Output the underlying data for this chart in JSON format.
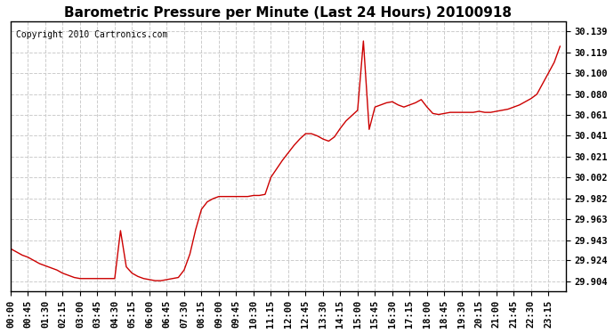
{
  "title": "Barometric Pressure per Minute (Last 24 Hours) 20100918",
  "copyright": "Copyright 2010 Cartronics.com",
  "line_color": "#cc0000",
  "bg_color": "#ffffff",
  "grid_color": "#cccccc",
  "yticks": [
    29.904,
    29.924,
    29.943,
    29.963,
    29.982,
    30.002,
    30.021,
    30.041,
    30.061,
    30.08,
    30.1,
    30.119,
    30.139
  ],
  "ytick_labels": [
    "29.904",
    "29.924",
    "29.943",
    "29.963",
    "29.982",
    "30.002",
    "30.021",
    "30.041",
    "30.061",
    "30.080",
    "30.100",
    "30.119",
    "30.139"
  ],
  "ylim": [
    29.895,
    30.148
  ],
  "xtick_labels": [
    "00:00",
    "00:45",
    "01:30",
    "02:15",
    "03:00",
    "03:45",
    "04:30",
    "05:15",
    "06:00",
    "06:45",
    "07:30",
    "08:15",
    "09:00",
    "09:45",
    "10:30",
    "11:15",
    "12:00",
    "12:45",
    "13:30",
    "14:15",
    "15:00",
    "15:45",
    "16:30",
    "17:15",
    "18:00",
    "18:45",
    "19:30",
    "20:15",
    "21:00",
    "21:45",
    "22:30",
    "23:15"
  ],
  "minutes": [
    0,
    15,
    30,
    45,
    60,
    75,
    90,
    105,
    120,
    135,
    150,
    165,
    180,
    195,
    210,
    225,
    240,
    255,
    270,
    285,
    300,
    315,
    330,
    345,
    360,
    375,
    390,
    405,
    420,
    435,
    450,
    465,
    480,
    495,
    510,
    525,
    540,
    555,
    570,
    585,
    600,
    615,
    630,
    645,
    660,
    675,
    690,
    705,
    720,
    735,
    750,
    765,
    780,
    795,
    810,
    825,
    840,
    855,
    870,
    885,
    900,
    915,
    930,
    945,
    960,
    975,
    990,
    1005,
    1020,
    1035,
    1050,
    1065,
    1080,
    1095,
    1110,
    1125,
    1140,
    1155,
    1170,
    1185,
    1200,
    1215,
    1230,
    1245,
    1260,
    1275,
    1290,
    1305,
    1320,
    1335,
    1350,
    1365,
    1380,
    1395,
    1410,
    1425
  ],
  "pressure": [
    29.935,
    29.932,
    29.929,
    29.927,
    29.924,
    29.921,
    29.919,
    29.917,
    29.915,
    29.912,
    29.91,
    29.908,
    29.907,
    29.907,
    29.907,
    29.907,
    29.907,
    29.907,
    29.907,
    29.952,
    29.918,
    29.912,
    29.909,
    29.907,
    29.906,
    29.905,
    29.905,
    29.906,
    29.907,
    29.908,
    29.915,
    29.93,
    29.953,
    29.972,
    29.979,
    29.982,
    29.984,
    29.984,
    29.984,
    29.984,
    29.984,
    29.984,
    29.985,
    29.985,
    29.986,
    30.002,
    30.01,
    30.018,
    30.025,
    30.032,
    30.038,
    30.043,
    30.043,
    30.041,
    30.038,
    30.036,
    30.04,
    30.048,
    30.055,
    30.06,
    30.065,
    30.13,
    30.047,
    30.068,
    30.07,
    30.072,
    30.073,
    30.07,
    30.068,
    30.07,
    30.072,
    30.075,
    30.068,
    30.062,
    30.061,
    30.062,
    30.063,
    30.063,
    30.063,
    30.063,
    30.063,
    30.064,
    30.063,
    30.063,
    30.064,
    30.065,
    30.066,
    30.068,
    30.07,
    30.073,
    30.076,
    30.08,
    30.09,
    30.1,
    30.11,
    30.125
  ]
}
